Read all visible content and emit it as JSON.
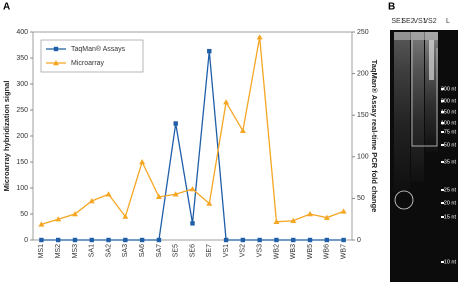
{
  "panel_labels": [
    "A",
    "B"
  ],
  "chart_data": {
    "type": "line",
    "ylabel": "Microarray hybridization signal",
    "y2label": "TaqMan® Assay real-time PCR fold change",
    "categories": [
      "MS1",
      "MS2",
      "MS3",
      "SA1",
      "SA2",
      "SA3",
      "SA6",
      "SA7",
      "SE5",
      "SE6",
      "SE7",
      "VS1",
      "VS2",
      "VS3",
      "WB2",
      "WB3",
      "WB5",
      "WB6",
      "WB7"
    ],
    "series": [
      {
        "name": "TaqMan® Assays",
        "color": "#1f5fa8",
        "marker": "square",
        "axis": "y2",
        "values": [
          0,
          0,
          0,
          0,
          0,
          0,
          0,
          0,
          140,
          20,
          227,
          0,
          0,
          0,
          0,
          0,
          0,
          0,
          0
        ]
      },
      {
        "name": "Microarray",
        "color": "#f5a623",
        "marker": "triangle",
        "values": [
          30,
          40,
          50,
          75,
          88,
          45,
          150,
          83,
          88,
          98,
          70,
          265,
          210,
          390,
          35,
          37,
          50,
          43,
          55
        ]
      }
    ],
    "ylim": [
      0,
      400
    ],
    "yticks": [
      0,
      50,
      100,
      150,
      200,
      250,
      300,
      350,
      400
    ],
    "y2lim": [
      0,
      250
    ],
    "y2ticks": [
      0,
      50,
      100,
      150,
      200,
      250
    ],
    "legend": "upper left"
  },
  "gel": {
    "lanes": [
      "SE1",
      "SE2",
      "VS1",
      "VS2",
      "L"
    ],
    "markers": [
      "300 nt",
      "200 nt",
      "150 nt",
      "100 nt",
      "75 nt",
      "50 nt",
      "35 nt",
      "25 nt",
      "20 nt",
      "15 nt",
      "10 nt"
    ]
  }
}
